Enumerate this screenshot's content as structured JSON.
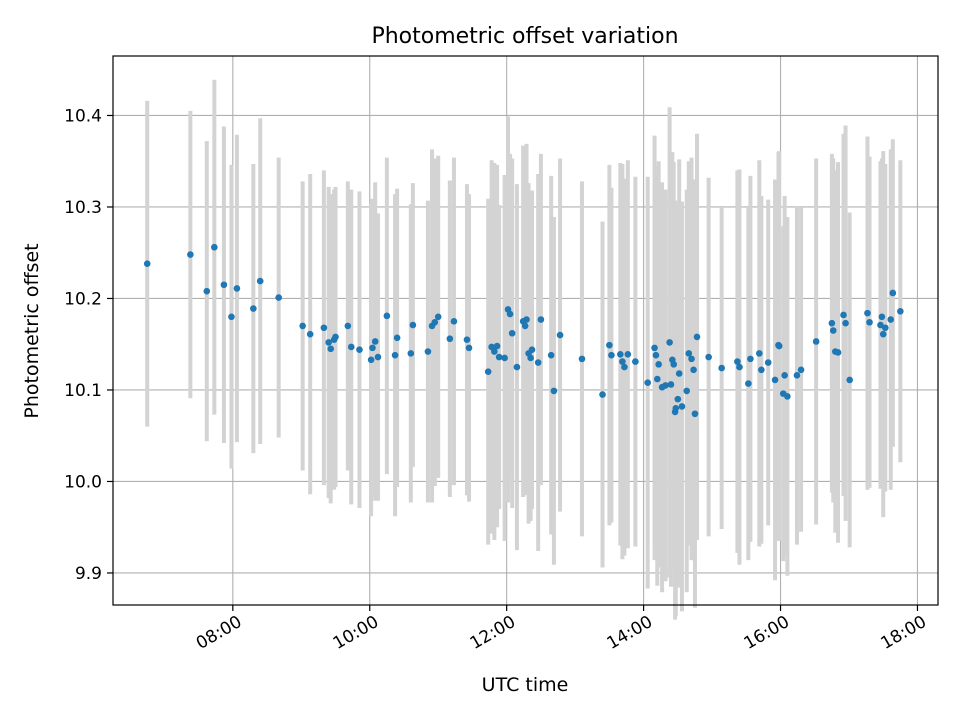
{
  "chart_data": {
    "type": "scatter",
    "title": "Photometric offset variation",
    "xlabel": "UTC time",
    "ylabel": "Photometric offset",
    "x_unit": "hours UTC",
    "xlim": [
      6.25,
      18.3
    ],
    "ylim": [
      9.865,
      10.465
    ],
    "xticks": [
      {
        "value": 8,
        "label": "08:00"
      },
      {
        "value": 10,
        "label": "10:00"
      },
      {
        "value": 12,
        "label": "12:00"
      },
      {
        "value": 14,
        "label": "14:00"
      },
      {
        "value": 16,
        "label": "16:00"
      },
      {
        "value": 18,
        "label": "18:00"
      }
    ],
    "yticks": [
      {
        "value": 9.9,
        "label": "9.9"
      },
      {
        "value": 10.0,
        "label": "10.0"
      },
      {
        "value": 10.1,
        "label": "10.1"
      },
      {
        "value": 10.2,
        "label": "10.2"
      },
      {
        "value": 10.3,
        "label": "10.3"
      },
      {
        "value": 10.4,
        "label": "10.4"
      }
    ],
    "grid": true,
    "legend": false,
    "colors": {
      "points": "#1f77b4",
      "errorbars": "#d3d3d3",
      "grid": "#b0b0b0"
    },
    "series": [
      {
        "x": [
          6.75,
          7.38,
          7.62,
          7.73,
          7.87,
          7.98,
          8.06,
          8.3,
          8.4,
          8.67,
          9.02,
          9.13,
          9.33,
          9.4,
          9.43,
          9.48,
          9.5,
          9.68,
          9.73,
          9.85,
          10.02,
          10.04,
          10.08,
          10.12,
          10.25,
          10.37,
          10.4,
          10.6,
          10.63,
          10.85,
          10.91,
          10.95,
          11.0,
          11.17,
          11.23,
          11.42,
          11.45,
          11.73,
          11.78,
          11.82,
          11.86,
          11.89,
          11.97,
          12.02,
          12.05,
          12.08,
          12.15,
          12.24,
          12.27,
          12.29,
          12.32,
          12.35,
          12.37,
          12.46,
          12.5,
          12.65,
          12.69,
          12.78,
          13.1,
          13.4,
          13.5,
          13.53,
          13.66,
          13.69,
          13.72,
          13.77,
          13.88,
          14.06,
          14.16,
          14.18,
          14.2,
          14.22,
          14.27,
          14.32,
          14.38,
          14.4,
          14.42,
          14.44,
          14.46,
          14.47,
          14.5,
          14.52,
          14.56,
          14.63,
          14.66,
          14.7,
          14.73,
          14.75,
          14.78,
          14.95,
          15.14,
          15.37,
          15.4,
          15.53,
          15.56,
          15.69,
          15.72,
          15.82,
          15.92,
          15.97,
          15.98,
          16.04,
          16.06,
          16.1,
          16.24,
          16.3,
          16.52,
          16.75,
          16.77,
          16.8,
          16.84,
          16.92,
          16.95,
          17.01,
          17.27,
          17.3,
          17.46,
          17.48,
          17.5,
          17.53,
          17.61,
          17.64,
          17.75
        ],
        "y": [
          10.238,
          10.248,
          10.208,
          10.256,
          10.215,
          10.18,
          10.211,
          10.189,
          10.219,
          10.201,
          10.17,
          10.161,
          10.168,
          10.152,
          10.145,
          10.155,
          10.158,
          10.17,
          10.147,
          10.144,
          10.133,
          10.146,
          10.153,
          10.136,
          10.181,
          10.138,
          10.157,
          10.14,
          10.171,
          10.142,
          10.17,
          10.174,
          10.18,
          10.156,
          10.175,
          10.155,
          10.146,
          10.12,
          10.147,
          10.142,
          10.148,
          10.136,
          10.135,
          10.188,
          10.183,
          10.162,
          10.125,
          10.175,
          10.17,
          10.177,
          10.14,
          10.135,
          10.144,
          10.13,
          10.177,
          10.138,
          10.099,
          10.16,
          10.134,
          10.095,
          10.149,
          10.138,
          10.139,
          10.131,
          10.125,
          10.139,
          10.131,
          10.108,
          10.146,
          10.138,
          10.112,
          10.128,
          10.103,
          10.105,
          10.152,
          10.106,
          10.133,
          10.128,
          10.076,
          10.08,
          10.09,
          10.118,
          10.082,
          10.099,
          10.14,
          10.134,
          10.122,
          10.074,
          10.158,
          10.136,
          10.124,
          10.131,
          10.125,
          10.107,
          10.134,
          10.14,
          10.122,
          10.13,
          10.111,
          10.149,
          10.148,
          10.096,
          10.116,
          10.093,
          10.116,
          10.122,
          10.153,
          10.173,
          10.165,
          10.142,
          10.141,
          10.182,
          10.173,
          10.111,
          10.184,
          10.174,
          10.171,
          10.18,
          10.161,
          10.168,
          10.177,
          10.206,
          10.186
        ],
        "err": [
          0.178,
          0.157,
          0.164,
          0.183,
          0.173,
          0.166,
          0.168,
          0.158,
          0.178,
          0.153,
          0.158,
          0.175,
          0.172,
          0.17,
          0.169,
          0.164,
          0.164,
          0.158,
          0.172,
          0.173,
          0.171,
          0.163,
          0.174,
          0.157,
          0.173,
          0.176,
          0.163,
          0.163,
          0.155,
          0.165,
          0.193,
          0.179,
          0.176,
          0.173,
          0.179,
          0.17,
          0.168,
          0.189,
          0.204,
          0.206,
          0.198,
          0.166,
          0.2,
          0.211,
          0.175,
          0.191,
          0.2,
          0.192,
          0.184,
          0.192,
          0.186,
          0.178,
          0.174,
          0.206,
          0.181,
          0.196,
          0.19,
          0.193,
          0.194,
          0.189,
          0.197,
          0.183,
          0.209,
          0.216,
          0.206,
          0.212,
          0.202,
          0.225,
          0.232,
          0.207,
          0.226,
          0.222,
          0.224,
          0.214,
          0.257,
          0.221,
          0.227,
          0.221,
          0.227,
          0.227,
          0.193,
          0.234,
          0.224,
          0.22,
          0.21,
          0.22,
          0.208,
          0.212,
          0.222,
          0.196,
          0.176,
          0.209,
          0.216,
          0.193,
          0.2,
          0.211,
          0.19,
          0.178,
          0.219,
          0.211,
          0.213,
          0.183,
          0.196,
          0.196,
          0.185,
          0.177,
          0.2,
          0.185,
          0.188,
          0.198,
          0.208,
          0.198,
          0.216,
          0.183,
          0.193,
          0.181,
          0.179,
          0.173,
          0.2,
          0.179,
          0.186,
          0.168,
          0.165
        ]
      }
    ]
  }
}
